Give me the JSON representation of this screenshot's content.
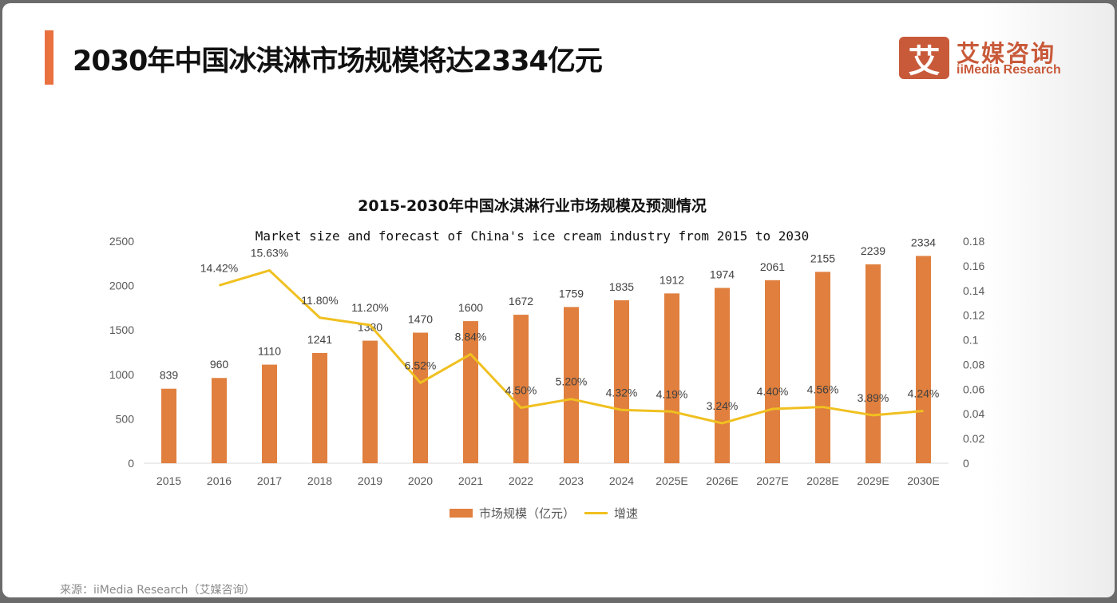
{
  "header": {
    "title": "2030年中国冰淇淋市场规模将达2334亿元",
    "logo": {
      "mark": "艾",
      "cn": "艾媒咨询",
      "en": "iiMedia Research"
    }
  },
  "footer": {
    "source": "来源：iiMedia Research（艾媒咨询）"
  },
  "colors": {
    "bar": "#e07f3e",
    "line": "#f0c020",
    "accent": "#e9703f",
    "logo": "#c85a3a"
  },
  "chart_data": {
    "type": "bar",
    "title": "2015-2030年中国冰淇淋行业市场规模及预测情况",
    "subtitle": "Market size and forecast of China's ice cream industry from 2015 to 2030",
    "categories": [
      "2015",
      "2016",
      "2017",
      "2018",
      "2019",
      "2020",
      "2021",
      "2022",
      "2023",
      "2024",
      "2025E",
      "2026E",
      "2027E",
      "2028E",
      "2029E",
      "2030E"
    ],
    "series": [
      {
        "name": "市场规模（亿元）",
        "type": "bar",
        "axis": "left",
        "values": [
          839,
          960,
          1110,
          1241,
          1380,
          1470,
          1600,
          1672,
          1759,
          1835,
          1912,
          1974,
          2061,
          2155,
          2239,
          2334
        ],
        "labels": [
          "839",
          "960",
          "1110",
          "1241",
          "1380",
          "1470",
          "1600",
          "1672",
          "1759",
          "1835",
          "1912",
          "1974",
          "2061",
          "2155",
          "2239",
          "2334"
        ]
      },
      {
        "name": "增速",
        "type": "line",
        "axis": "right",
        "values": [
          null,
          0.1442,
          0.1563,
          0.118,
          0.112,
          0.0652,
          0.0884,
          0.045,
          0.052,
          0.0432,
          0.0419,
          0.0324,
          0.044,
          0.0456,
          0.0389,
          0.0424
        ],
        "labels": [
          "",
          "14.42%",
          "15.63%",
          "11.80%",
          "11.20%",
          "6.52%",
          "8.84%",
          "4.50%",
          "5.20%",
          "4.32%",
          "4.19%",
          "3.24%",
          "4.40%",
          "4.56%",
          "3.89%",
          "4.24%"
        ]
      }
    ],
    "y_left": {
      "range": [
        0,
        2500
      ],
      "ticks": [
        "0",
        "500",
        "1000",
        "1500",
        "2000",
        "2500"
      ]
    },
    "y_right": {
      "range": [
        0,
        0.18
      ],
      "ticks": [
        "0",
        "0.02",
        "0.04",
        "0.06",
        "0.08",
        "0.1",
        "0.12",
        "0.14",
        "0.16",
        "0.18"
      ]
    },
    "legend": {
      "position": "bottom",
      "items": [
        "市场规模（亿元）",
        "增速"
      ]
    },
    "grid": false
  }
}
